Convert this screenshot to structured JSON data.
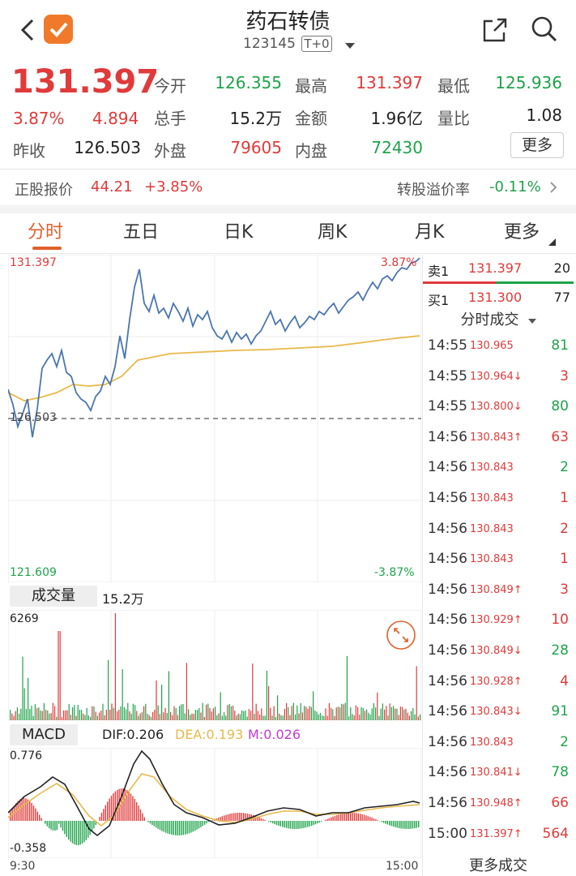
{
  "header": {
    "title": "药石转债",
    "code": "123145",
    "badge": "T+0"
  },
  "quote": {
    "price": "131.397",
    "pct": "3.87%",
    "change": "4.894",
    "prev_close_label": "昨收",
    "prev_close": "126.503",
    "open_label": "今开",
    "open": "126.355",
    "high_label": "最高",
    "high": "131.397",
    "low_label": "最低",
    "low": "125.936",
    "vol_label": "总手",
    "vol": "15.2万",
    "amount_label": "金额",
    "amount": "1.96亿",
    "ratio_label": "量比",
    "ratio": "1.08",
    "outer_label": "外盘",
    "outer": "79605",
    "inner_label": "内盘",
    "inner": "72430",
    "more_label": "更多"
  },
  "stock_bar": {
    "label": "正股报价",
    "price": "44.21",
    "pct": "+3.85%",
    "premium_label": "转股溢价率",
    "premium": "-0.11%"
  },
  "tabs": [
    "分时",
    "五日",
    "日K",
    "周K",
    "月K",
    "更多"
  ],
  "colors": {
    "red": "#e03a3a",
    "green": "#1ea34a",
    "line": "#4a76ad",
    "avg": "#e8b94a",
    "accent": "#e0602a"
  },
  "chart_main": {
    "top_left": "131.397",
    "top_right": "3.87%",
    "mid_left": "126.503",
    "bottom_left": "121.609",
    "bottom_right": "-3.87%"
  },
  "orderbook": {
    "sell_label": "卖1",
    "sell_price": "131.397",
    "sell_vol": "20",
    "buy_label": "买1",
    "buy_price": "131.300",
    "buy_vol": "77",
    "ticks_title": "分时成交",
    "more_trades": "更多成交"
  },
  "trades": [
    {
      "time": "14:55",
      "price": "130.965",
      "arrow": "",
      "vol": "81",
      "dir": "green"
    },
    {
      "time": "14:55",
      "price": "130.964",
      "arrow": "↓",
      "vol": "3",
      "dir": "red"
    },
    {
      "time": "14:55",
      "price": "130.800",
      "arrow": "↓",
      "vol": "80",
      "dir": "green"
    },
    {
      "time": "14:56",
      "price": "130.843",
      "arrow": "↑",
      "vol": "63",
      "dir": "red"
    },
    {
      "time": "14:56",
      "price": "130.843",
      "arrow": "",
      "vol": "2",
      "dir": "green"
    },
    {
      "time": "14:56",
      "price": "130.843",
      "arrow": "",
      "vol": "1",
      "dir": "red"
    },
    {
      "time": "14:56",
      "price": "130.843",
      "arrow": "",
      "vol": "2",
      "dir": "red"
    },
    {
      "time": "14:56",
      "price": "130.843",
      "arrow": "",
      "vol": "1",
      "dir": "red"
    },
    {
      "time": "14:56",
      "price": "130.849",
      "arrow": "↑",
      "vol": "3",
      "dir": "red"
    },
    {
      "time": "14:56",
      "price": "130.929",
      "arrow": "↑",
      "vol": "10",
      "dir": "red"
    },
    {
      "time": "14:56",
      "price": "130.849",
      "arrow": "↓",
      "vol": "28",
      "dir": "green"
    },
    {
      "time": "14:56",
      "price": "130.928",
      "arrow": "↑",
      "vol": "4",
      "dir": "red"
    },
    {
      "time": "14:56",
      "price": "130.843",
      "arrow": "↓",
      "vol": "91",
      "dir": "green"
    },
    {
      "time": "14:56",
      "price": "130.843",
      "arrow": "",
      "vol": "2",
      "dir": "green"
    },
    {
      "time": "14:56",
      "price": "130.841",
      "arrow": "↓",
      "vol": "78",
      "dir": "green"
    },
    {
      "time": "14:56",
      "price": "130.948",
      "arrow": "↑",
      "vol": "66",
      "dir": "red"
    },
    {
      "time": "15:00",
      "price": "131.397",
      "arrow": "↑",
      "vol": "564",
      "dir": "red"
    }
  ],
  "volume_panel": {
    "label": "成交量",
    "total": "15.2万",
    "max": "6269"
  },
  "macd": {
    "label": "MACD",
    "dif": "DIF:0.206",
    "dea": "DEA:0.193",
    "m": "M:0.026",
    "top": "0.776",
    "bottom": "-0.358",
    "time_start": "9:30",
    "time_end": "15:00"
  }
}
